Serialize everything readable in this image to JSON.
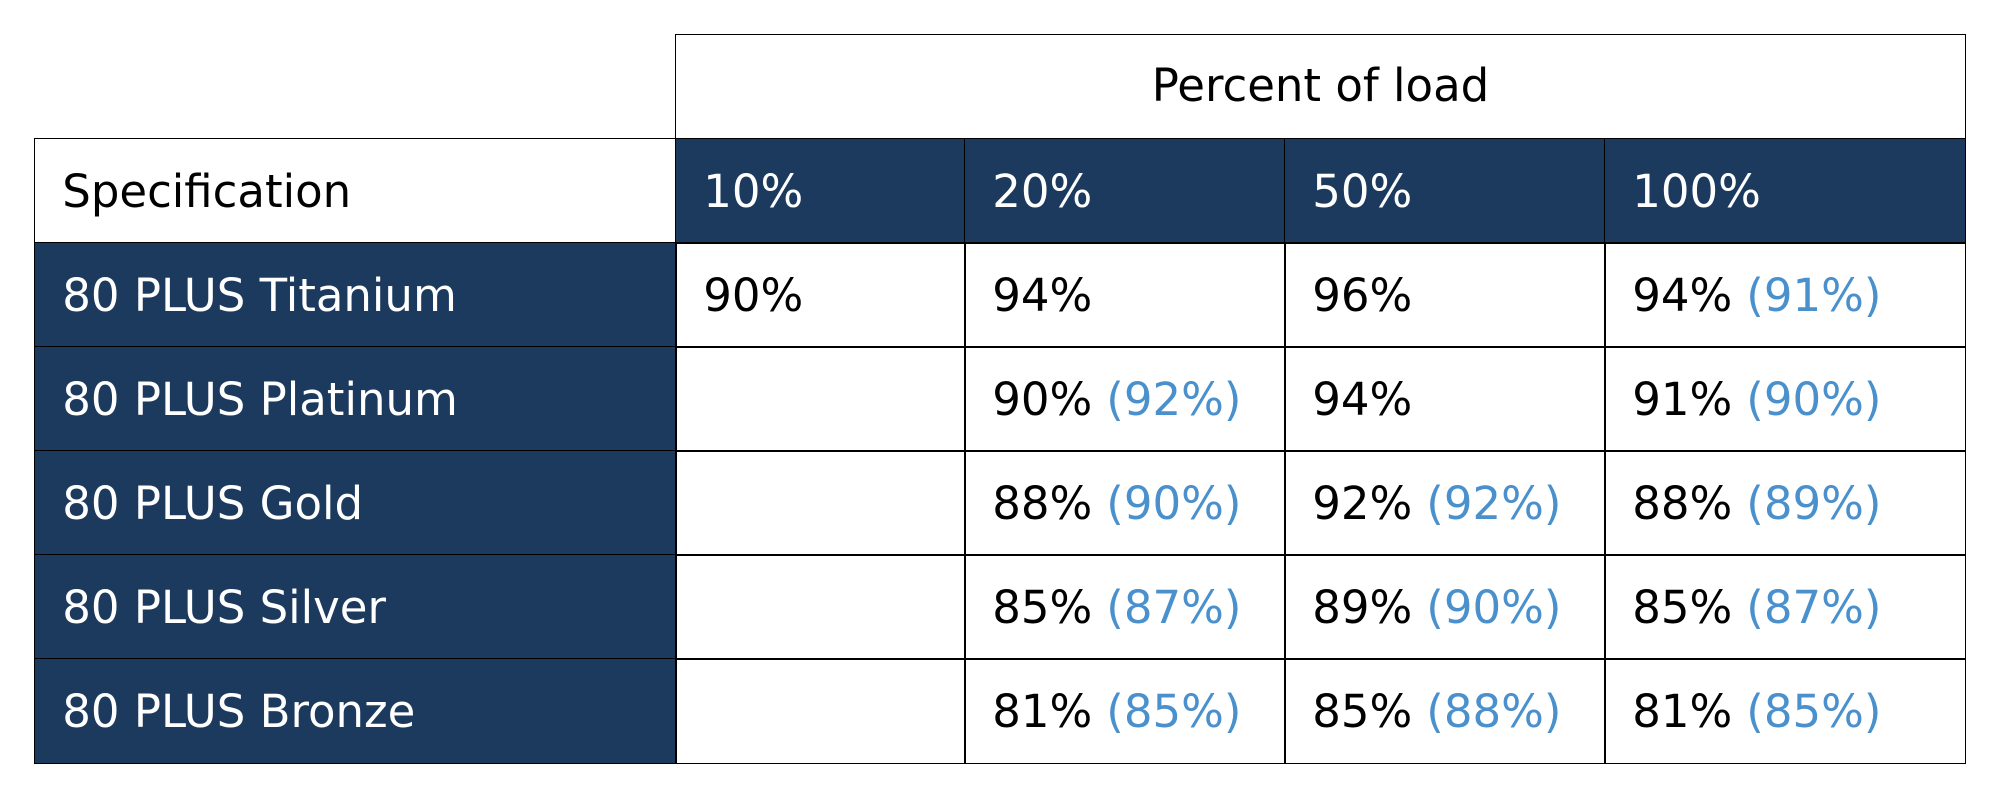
{
  "table": {
    "group_header": "Percent of load",
    "spec_header": "Specification",
    "load_headers": [
      "10%",
      "20%",
      "50%",
      "100%"
    ],
    "rows": [
      {
        "spec": "80 PLUS Titanium",
        "cells": [
          {
            "value": "90%",
            "alt": ""
          },
          {
            "value": "94%",
            "alt": ""
          },
          {
            "value": "96%",
            "alt": ""
          },
          {
            "value": "94%",
            "alt": "(91%)"
          }
        ]
      },
      {
        "spec": "80 PLUS Platinum",
        "cells": [
          {
            "value": "",
            "alt": ""
          },
          {
            "value": "90%",
            "alt": "(92%)"
          },
          {
            "value": "94%",
            "alt": ""
          },
          {
            "value": "91%",
            "alt": "(90%)"
          }
        ]
      },
      {
        "spec": "80 PLUS Gold",
        "cells": [
          {
            "value": "",
            "alt": ""
          },
          {
            "value": "88%",
            "alt": "(90%)"
          },
          {
            "value": "92%",
            "alt": "(92%)"
          },
          {
            "value": "88%",
            "alt": "(89%)"
          }
        ]
      },
      {
        "spec": "80 PLUS Silver",
        "cells": [
          {
            "value": "",
            "alt": ""
          },
          {
            "value": "85%",
            "alt": "(87%)"
          },
          {
            "value": "89%",
            "alt": "(90%)"
          },
          {
            "value": "85%",
            "alt": "(87%)"
          }
        ]
      },
      {
        "spec": "80 PLUS Bronze",
        "cells": [
          {
            "value": "",
            "alt": ""
          },
          {
            "value": "81%",
            "alt": "(85%)"
          },
          {
            "value": "85%",
            "alt": "(88%)"
          },
          {
            "value": "81%",
            "alt": "(85%)"
          }
        ]
      }
    ]
  },
  "colors": {
    "header_fill": "#1b3a5e",
    "header_text": "#ffffff",
    "alt_value_text": "#4a90cc",
    "body_text": "#000000",
    "border": "#000000"
  }
}
